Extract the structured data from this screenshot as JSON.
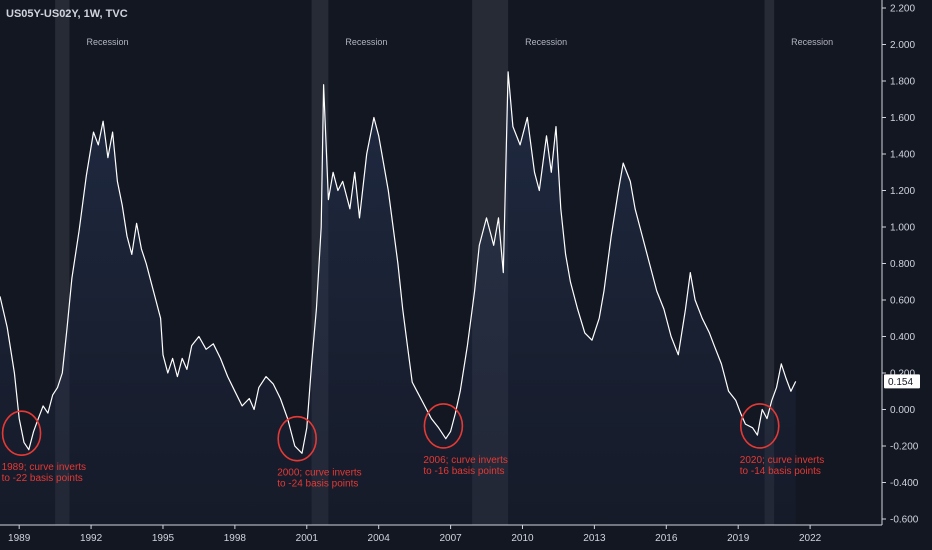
{
  "chart_data": {
    "type": "area",
    "title": "US05Y-US02Y, 1W, TVC",
    "last_value_label": "0.154",
    "last_value": 0.154,
    "ylim": [
      -0.6,
      2.2
    ],
    "xlim": [
      1988.2,
      2025.0
    ],
    "y_ticks": [
      "2.200",
      "2.000",
      "1.800",
      "1.600",
      "1.400",
      "1.200",
      "1.000",
      "0.800",
      "0.600",
      "0.400",
      "0.200",
      "0.000",
      "-0.200",
      "-0.400",
      "-0.600"
    ],
    "x_ticks": [
      "1989",
      "1992",
      "1995",
      "1998",
      "2001",
      "2004",
      "2007",
      "2010",
      "2013",
      "2016",
      "2019",
      "2022"
    ],
    "recessions": [
      {
        "label": "Recession",
        "start": 1990.5,
        "end": 1991.1
      },
      {
        "label": "Recession",
        "start": 2001.2,
        "end": 2001.9
      },
      {
        "label": "Recession",
        "start": 2007.9,
        "end": 2009.4
      },
      {
        "label": "Recession",
        "start": 2020.1,
        "end": 2020.5
      }
    ],
    "annotations": [
      {
        "line1": "1989; curve inverts",
        "line2": "to -22 basis points",
        "x": 1989.1,
        "y": -0.13
      },
      {
        "line1": "2000; curve inverts",
        "line2": "to -24 basis points",
        "x": 2000.6,
        "y": -0.16
      },
      {
        "line1": "2006; curve inverts",
        "line2": "to -16 basis points",
        "x": 2006.7,
        "y": -0.09
      },
      {
        "line1": "2020; curve inverts",
        "line2": "to -14 basis points",
        "x": 2019.9,
        "y": -0.09
      }
    ],
    "series": [
      {
        "values": [
          [
            1988.2,
            0.62
          ],
          [
            1988.5,
            0.45
          ],
          [
            1988.8,
            0.2
          ],
          [
            1989.0,
            -0.05
          ],
          [
            1989.2,
            -0.18
          ],
          [
            1989.4,
            -0.22
          ],
          [
            1989.6,
            -0.12
          ],
          [
            1989.8,
            -0.05
          ],
          [
            1990.0,
            0.02
          ],
          [
            1990.2,
            -0.02
          ],
          [
            1990.4,
            0.08
          ],
          [
            1990.6,
            0.12
          ],
          [
            1990.8,
            0.2
          ],
          [
            1991.0,
            0.45
          ],
          [
            1991.2,
            0.72
          ],
          [
            1991.5,
            0.98
          ],
          [
            1991.8,
            1.28
          ],
          [
            1992.1,
            1.52
          ],
          [
            1992.3,
            1.45
          ],
          [
            1992.5,
            1.58
          ],
          [
            1992.7,
            1.38
          ],
          [
            1992.9,
            1.52
          ],
          [
            1993.1,
            1.25
          ],
          [
            1993.3,
            1.12
          ],
          [
            1993.5,
            0.95
          ],
          [
            1993.7,
            0.85
          ],
          [
            1993.9,
            1.02
          ],
          [
            1994.1,
            0.88
          ],
          [
            1994.3,
            0.8
          ],
          [
            1994.5,
            0.7
          ],
          [
            1994.7,
            0.6
          ],
          [
            1994.9,
            0.5
          ],
          [
            1995.0,
            0.3
          ],
          [
            1995.2,
            0.2
          ],
          [
            1995.4,
            0.28
          ],
          [
            1995.6,
            0.18
          ],
          [
            1995.8,
            0.28
          ],
          [
            1996.0,
            0.22
          ],
          [
            1996.2,
            0.35
          ],
          [
            1996.5,
            0.4
          ],
          [
            1996.8,
            0.33
          ],
          [
            1997.1,
            0.36
          ],
          [
            1997.4,
            0.28
          ],
          [
            1997.7,
            0.18
          ],
          [
            1998.0,
            0.1
          ],
          [
            1998.3,
            0.02
          ],
          [
            1998.6,
            0.06
          ],
          [
            1998.8,
            0.0
          ],
          [
            1999.0,
            0.12
          ],
          [
            1999.3,
            0.18
          ],
          [
            1999.6,
            0.14
          ],
          [
            1999.9,
            0.06
          ],
          [
            2000.2,
            -0.05
          ],
          [
            2000.5,
            -0.2
          ],
          [
            2000.8,
            -0.24
          ],
          [
            2001.0,
            -0.1
          ],
          [
            2001.2,
            0.25
          ],
          [
            2001.4,
            0.55
          ],
          [
            2001.6,
            1.0
          ],
          [
            2001.7,
            1.78
          ],
          [
            2001.9,
            1.15
          ],
          [
            2002.1,
            1.3
          ],
          [
            2002.3,
            1.2
          ],
          [
            2002.5,
            1.25
          ],
          [
            2002.8,
            1.1
          ],
          [
            2003.0,
            1.3
          ],
          [
            2003.2,
            1.05
          ],
          [
            2003.5,
            1.4
          ],
          [
            2003.8,
            1.6
          ],
          [
            2004.0,
            1.5
          ],
          [
            2004.2,
            1.35
          ],
          [
            2004.4,
            1.2
          ],
          [
            2004.6,
            1.0
          ],
          [
            2004.8,
            0.8
          ],
          [
            2005.0,
            0.55
          ],
          [
            2005.2,
            0.35
          ],
          [
            2005.4,
            0.15
          ],
          [
            2005.6,
            0.1
          ],
          [
            2005.8,
            0.05
          ],
          [
            2006.0,
            0.0
          ],
          [
            2006.2,
            -0.05
          ],
          [
            2006.5,
            -0.1
          ],
          [
            2006.8,
            -0.16
          ],
          [
            2007.0,
            -0.12
          ],
          [
            2007.2,
            -0.02
          ],
          [
            2007.4,
            0.1
          ],
          [
            2007.7,
            0.35
          ],
          [
            2008.0,
            0.65
          ],
          [
            2008.2,
            0.9
          ],
          [
            2008.5,
            1.05
          ],
          [
            2008.8,
            0.9
          ],
          [
            2009.0,
            1.05
          ],
          [
            2009.2,
            0.75
          ],
          [
            2009.4,
            1.85
          ],
          [
            2009.6,
            1.55
          ],
          [
            2009.9,
            1.45
          ],
          [
            2010.2,
            1.6
          ],
          [
            2010.5,
            1.3
          ],
          [
            2010.7,
            1.2
          ],
          [
            2011.0,
            1.5
          ],
          [
            2011.2,
            1.3
          ],
          [
            2011.4,
            1.55
          ],
          [
            2011.6,
            1.1
          ],
          [
            2011.8,
            0.85
          ],
          [
            2012.0,
            0.7
          ],
          [
            2012.3,
            0.55
          ],
          [
            2012.6,
            0.42
          ],
          [
            2012.9,
            0.38
          ],
          [
            2013.2,
            0.5
          ],
          [
            2013.4,
            0.65
          ],
          [
            2013.7,
            0.95
          ],
          [
            2014.0,
            1.2
          ],
          [
            2014.2,
            1.35
          ],
          [
            2014.5,
            1.25
          ],
          [
            2014.7,
            1.1
          ],
          [
            2015.0,
            0.95
          ],
          [
            2015.3,
            0.8
          ],
          [
            2015.6,
            0.65
          ],
          [
            2015.9,
            0.55
          ],
          [
            2016.2,
            0.4
          ],
          [
            2016.5,
            0.3
          ],
          [
            2016.8,
            0.55
          ],
          [
            2017.0,
            0.75
          ],
          [
            2017.2,
            0.6
          ],
          [
            2017.5,
            0.5
          ],
          [
            2017.8,
            0.42
          ],
          [
            2018.0,
            0.35
          ],
          [
            2018.3,
            0.25
          ],
          [
            2018.6,
            0.1
          ],
          [
            2018.9,
            0.05
          ],
          [
            2019.1,
            -0.02
          ],
          [
            2019.3,
            -0.08
          ],
          [
            2019.6,
            -0.1
          ],
          [
            2019.8,
            -0.14
          ],
          [
            2020.0,
            0.0
          ],
          [
            2020.2,
            -0.05
          ],
          [
            2020.4,
            0.05
          ],
          [
            2020.6,
            0.12
          ],
          [
            2020.8,
            0.25
          ],
          [
            2021.0,
            0.17
          ],
          [
            2021.2,
            0.1
          ],
          [
            2021.4,
            0.154
          ]
        ]
      }
    ]
  }
}
